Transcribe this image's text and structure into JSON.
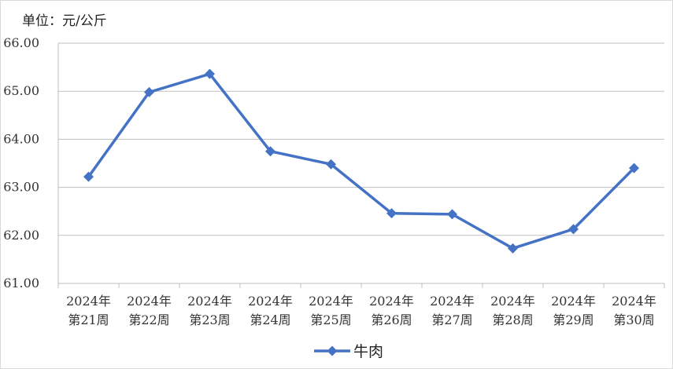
{
  "unit_label": "单位：元/公斤",
  "colors": {
    "series": "#4472c4",
    "grid": "#bfbfbf",
    "axis": "#bfbfbf",
    "text": "#333333"
  },
  "chart_data": {
    "type": "line",
    "categories": [
      [
        "2024年",
        "第21周"
      ],
      [
        "2024年",
        "第22周"
      ],
      [
        "2024年",
        "第23周"
      ],
      [
        "2024年",
        "第24周"
      ],
      [
        "2024年",
        "第25周"
      ],
      [
        "2024年",
        "第26周"
      ],
      [
        "2024年",
        "第27周"
      ],
      [
        "2024年",
        "第28周"
      ],
      [
        "2024年",
        "第29周"
      ],
      [
        "2024年",
        "第30周"
      ]
    ],
    "series": [
      {
        "name": "牛肉",
        "values": [
          63.22,
          64.98,
          65.36,
          63.75,
          63.48,
          62.46,
          62.44,
          61.73,
          62.13,
          63.4
        ]
      }
    ],
    "yticks": [
      "61.00",
      "62.00",
      "63.00",
      "64.00",
      "65.00",
      "66.00"
    ],
    "ylim": [
      61,
      66
    ],
    "grid": true,
    "legend_position": "bottom",
    "marker": "diamond"
  }
}
